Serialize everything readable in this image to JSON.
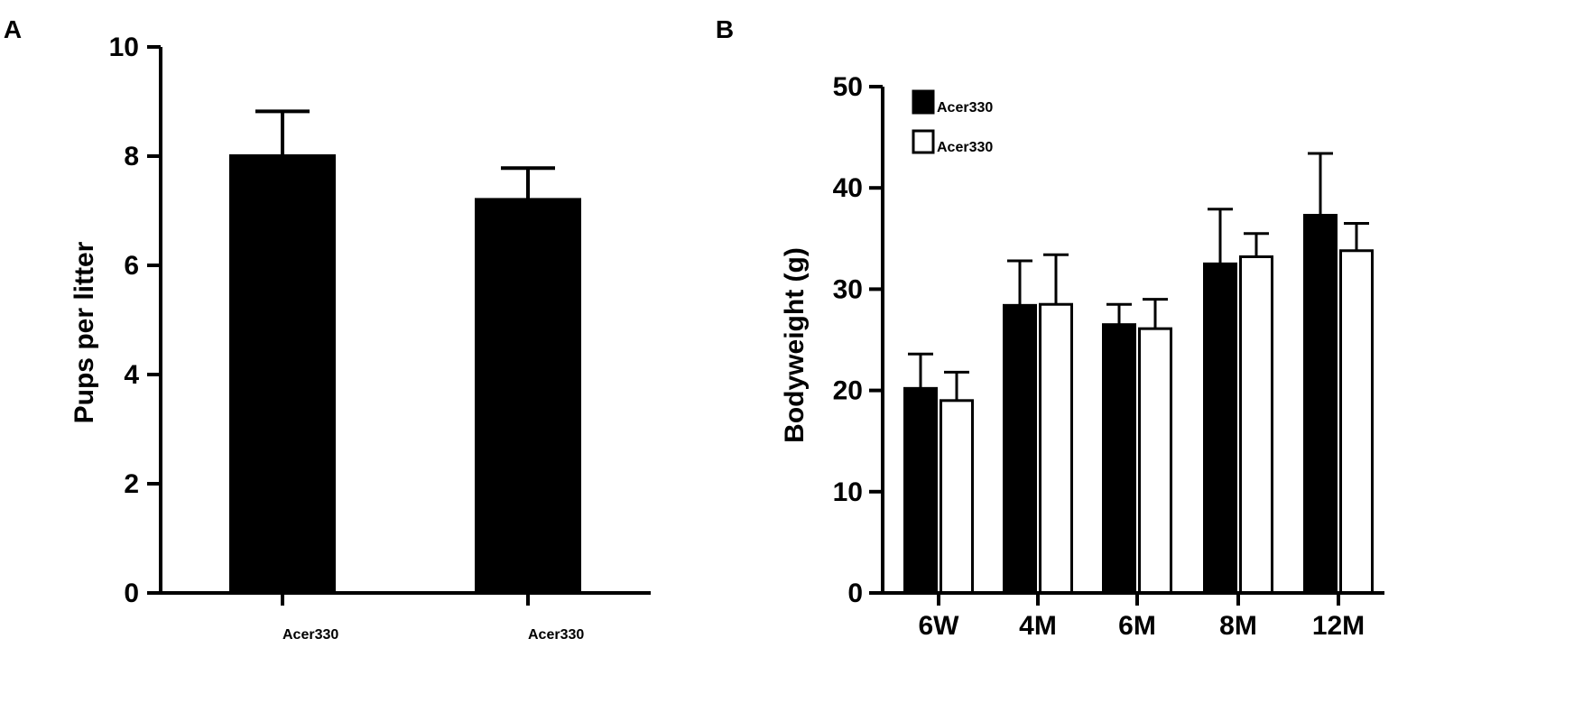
{
  "chart_data": [
    {
      "panel_label": "A",
      "type": "bar",
      "ylabel": "Pups per litter",
      "ylim": [
        0,
        10
      ],
      "yticks": [
        0,
        2,
        4,
        6,
        8,
        10
      ],
      "categories": [
        {
          "base": "Acer3",
          "sup": "+/+"
        },
        {
          "base": "Acer3",
          "sup": "-/-"
        }
      ],
      "values": [
        8.0,
        7.2
      ],
      "errors": [
        0.82,
        0.58
      ],
      "bar_fill": "#000000"
    },
    {
      "panel_label": "B",
      "type": "bar",
      "ylabel": "Bodyweight (g)",
      "ylim": [
        0,
        50
      ],
      "yticks": [
        0,
        10,
        20,
        30,
        40,
        50
      ],
      "categories": [
        "6W",
        "4M",
        "6M",
        "8M",
        "12M"
      ],
      "legend_position": "top-left",
      "series": [
        {
          "name": "Acer3",
          "sup": "+/+",
          "fill": "#000000",
          "values": [
            20.2,
            28.4,
            26.5,
            32.5,
            37.3
          ],
          "errors": [
            3.4,
            4.4,
            2.0,
            5.4,
            6.1
          ]
        },
        {
          "name": "Acer3",
          "sup": "-/-",
          "fill": "#ffffff",
          "values": [
            19.0,
            28.5,
            26.1,
            33.2,
            33.8
          ],
          "errors": [
            2.8,
            4.9,
            2.9,
            2.3,
            2.7
          ]
        }
      ]
    }
  ]
}
